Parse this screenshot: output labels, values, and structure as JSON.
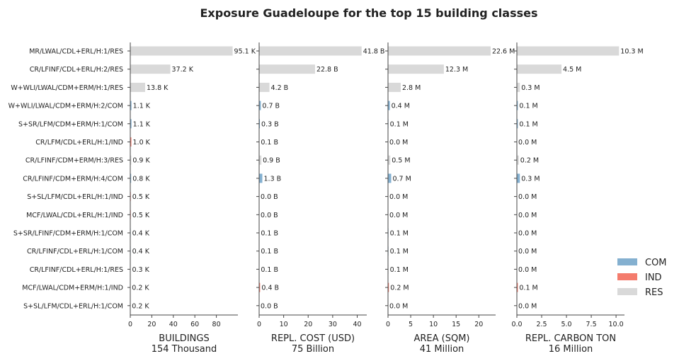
{
  "chart_data": {
    "type": "bar",
    "title": "Exposure Guadeloupe for the top 15 building classes",
    "categories": [
      "MR/LWAL/CDL+ERL/H:1/RES",
      "CR/LFINF/CDL+ERL/H:2/RES",
      "W+WLI/LWAL/CDM+ERM/H:1/RES",
      "W+WLI/LWAL/CDM+ERM/H:2/COM",
      "S+SR/LFM/CDM+ERM/H:1/COM",
      "CR/LFM/CDL+ERL/H:1/IND",
      "CR/LFINF/CDM+ERM/H:3/RES",
      "CR/LFINF/CDM+ERM/H:4/COM",
      "S+SL/LFM/CDL+ERL/H:1/IND",
      "MCF/LWAL/CDL+ERL/H:1/IND",
      "S+SR/LFINF/CDM+ERM/H:1/COM",
      "CR/LFINF/CDL+ERL/H:1/COM",
      "CR/LFINF/CDL+ERL/H:1/RES",
      "MCF/LWAL/CDM+ERM/H:1/IND",
      "S+SL/LFM/CDL+ERL/H:1/COM"
    ],
    "occupancy": [
      "RES",
      "RES",
      "RES",
      "COM",
      "COM",
      "IND",
      "RES",
      "COM",
      "IND",
      "IND",
      "COM",
      "COM",
      "RES",
      "IND",
      "COM"
    ],
    "colors": {
      "COM": "#84b0d0",
      "IND": "#f47c6d",
      "RES": "#d9d9d9"
    },
    "legend": {
      "position": "bottom-right",
      "entries": [
        "COM",
        "IND",
        "RES"
      ]
    },
    "panels": [
      {
        "xlabel": "BUILDINGS",
        "subtitle": "154 Thousand",
        "xlim": [
          0,
          100
        ],
        "ticks": [
          0,
          20,
          40,
          60,
          80
        ],
        "tick_labels": [
          "0",
          "20",
          "40",
          "60",
          "80"
        ],
        "values": [
          95.1,
          37.2,
          13.8,
          1.1,
          1.1,
          1.0,
          0.9,
          0.8,
          0.5,
          0.5,
          0.4,
          0.4,
          0.3,
          0.2,
          0.2
        ],
        "labels": [
          "95.1 K",
          "37.2 K",
          "13.8 K",
          "1.1 K",
          "1.1 K",
          "1.0 K",
          "0.9 K",
          "0.8 K",
          "0.5 K",
          "0.5 K",
          "0.4 K",
          "0.4 K",
          "0.3 K",
          "0.2 K",
          "0.2 K"
        ]
      },
      {
        "xlabel": "REPL. COST (USD)",
        "subtitle": "75 Billion",
        "xlim": [
          0,
          43.9
        ],
        "ticks": [
          0,
          10,
          20,
          30,
          40
        ],
        "tick_labels": [
          "0",
          "10",
          "20",
          "30",
          "40"
        ],
        "values": [
          41.8,
          22.8,
          4.2,
          0.7,
          0.3,
          0.1,
          0.9,
          1.3,
          0.0,
          0.0,
          0.1,
          0.1,
          0.1,
          0.4,
          0.0
        ],
        "labels": [
          "41.8 B",
          "22.8 B",
          "4.2 B",
          "0.7 B",
          "0.3 B",
          "0.1 B",
          "0.9 B",
          "1.3 B",
          "0.0 B",
          "0.0 B",
          "0.1 B",
          "0.1 B",
          "0.1 B",
          "0.4 B",
          "0.0 B"
        ]
      },
      {
        "xlabel": "AREA (SQM)",
        "subtitle": "41 Million",
        "xlim": [
          0,
          23.7
        ],
        "ticks": [
          0,
          5,
          10,
          15,
          20
        ],
        "tick_labels": [
          "0",
          "5",
          "10",
          "15",
          "20"
        ],
        "values": [
          22.6,
          12.3,
          2.8,
          0.4,
          0.1,
          0.0,
          0.5,
          0.7,
          0.0,
          0.0,
          0.1,
          0.1,
          0.1,
          0.2,
          0.0
        ],
        "labels": [
          "22.6 M",
          "12.3 M",
          "2.8 M",
          "0.4 M",
          "0.1 M",
          "0.0 M",
          "0.5 M",
          "0.7 M",
          "0.0 M",
          "0.0 M",
          "0.1 M",
          "0.1 M",
          "0.1 M",
          "0.2 M",
          "0.0 M"
        ]
      },
      {
        "xlabel": "REPL. CARBON TON",
        "subtitle": "16 Million",
        "xlim": [
          0,
          10.85
        ],
        "ticks": [
          0,
          2.5,
          5,
          7.5,
          10
        ],
        "tick_labels": [
          "0.0",
          "2.5",
          "5.0",
          "7.5",
          "10.0"
        ],
        "values": [
          10.3,
          4.5,
          0.3,
          0.1,
          0.1,
          0.0,
          0.2,
          0.3,
          0.0,
          0.0,
          0.0,
          0.0,
          0.0,
          0.1,
          0.0
        ],
        "labels": [
          "10.3 M",
          "4.5 M",
          "0.3 M",
          "0.1 M",
          "0.1 M",
          "0.0 M",
          "0.2 M",
          "0.3 M",
          "0.0 M",
          "0.0 M",
          "0.0 M",
          "0.0 M",
          "0.0 M",
          "0.1 M",
          "0.0 M"
        ]
      }
    ]
  }
}
